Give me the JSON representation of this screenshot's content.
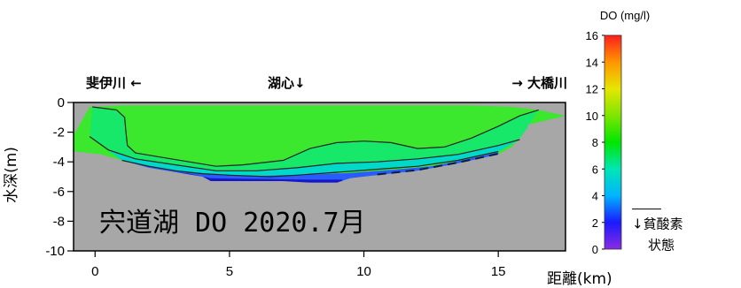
{
  "chart_data": {
    "type": "heatmap",
    "title": "宍道湖 DO 2020.7月",
    "xlabel": "距離(km)",
    "ylabel": "水深(m)",
    "xlim": [
      -0.8,
      17.5
    ],
    "ylim": [
      -10,
      0
    ],
    "x_ticks": [
      0,
      5,
      10,
      15
    ],
    "y_ticks": [
      0,
      -2,
      -4,
      -6,
      -8,
      -10
    ],
    "y_tick_labels": [
      "0",
      "-2",
      "-4",
      "-6",
      "-8",
      "-10"
    ],
    "locations": {
      "left": "斐伊川 ←",
      "center": "湖心↓",
      "right": "→ 大橋川"
    },
    "colorbar": {
      "title": "DO (mg/l)",
      "ticks": [
        0,
        2,
        4,
        6,
        8,
        10,
        12,
        14,
        16
      ],
      "range": [
        0,
        16
      ],
      "annotation_line1": "↓貧酸素",
      "annotation_line2": "状態",
      "annotation_threshold": 3,
      "colors": [
        {
          "v": 0,
          "c": "#8a2be2"
        },
        {
          "v": 2,
          "c": "#1a1aff"
        },
        {
          "v": 4,
          "c": "#00b4ff"
        },
        {
          "v": 6,
          "c": "#00e6b4"
        },
        {
          "v": 8,
          "c": "#00e600"
        },
        {
          "v": 10,
          "c": "#7ee600"
        },
        {
          "v": 12,
          "c": "#e6e600"
        },
        {
          "v": 14,
          "c": "#ff9600"
        },
        {
          "v": 16,
          "c": "#ff1e1e"
        }
      ]
    },
    "water_column_color": "#3be82d",
    "bottom_color": "#a7a7a7",
    "lakebed": [
      [
        -0.8,
        -3.3
      ],
      [
        0.2,
        -3.5
      ],
      [
        1.0,
        -3.9
      ],
      [
        2.0,
        -4.4
      ],
      [
        3.0,
        -4.7
      ],
      [
        4.0,
        -5.0
      ],
      [
        4.3,
        -5.3
      ],
      [
        6.0,
        -5.3
      ],
      [
        7.0,
        -5.3
      ],
      [
        8.0,
        -5.4
      ],
      [
        9.0,
        -5.4
      ],
      [
        9.5,
        -5.1
      ],
      [
        10.5,
        -4.9
      ],
      [
        12.0,
        -4.6
      ],
      [
        13.5,
        -4.1
      ],
      [
        15.0,
        -3.5
      ],
      [
        15.5,
        -3.0
      ],
      [
        15.8,
        -2.4
      ],
      [
        16.1,
        -1.7
      ],
      [
        16.1,
        -1.5
      ],
      [
        17.5,
        -1.5
      ]
    ],
    "surface": [
      [
        -0.8,
        -2.2
      ],
      [
        -0.2,
        -0.3
      ],
      [
        1.0,
        -0.2
      ],
      [
        5.0,
        -0.2
      ],
      [
        10.0,
        -0.2
      ],
      [
        14.0,
        -0.2
      ],
      [
        15.5,
        -0.3
      ],
      [
        16.5,
        -0.5
      ],
      [
        17.5,
        -0.9
      ]
    ],
    "isolines": [
      {
        "level": 8,
        "points": [
          [
            -0.1,
            -0.3
          ],
          [
            0.8,
            -0.5
          ],
          [
            1.1,
            -1.0
          ],
          [
            1.15,
            -2.0
          ],
          [
            1.2,
            -2.9
          ],
          [
            1.5,
            -3.4
          ],
          [
            2.5,
            -3.7
          ],
          [
            3.5,
            -4.0
          ],
          [
            4.5,
            -4.3
          ],
          [
            5.5,
            -4.2
          ],
          [
            7.0,
            -3.9
          ],
          [
            8.0,
            -3.1
          ],
          [
            9.0,
            -2.7
          ],
          [
            10.0,
            -2.6
          ],
          [
            11.0,
            -2.7
          ],
          [
            12.0,
            -3.1
          ],
          [
            13.0,
            -3.0
          ],
          [
            14.0,
            -2.4
          ],
          [
            15.0,
            -1.6
          ],
          [
            15.8,
            -0.9
          ],
          [
            16.5,
            -0.5
          ]
        ]
      },
      {
        "level": 6,
        "points": [
          [
            -0.2,
            -2.3
          ],
          [
            0.5,
            -3.2
          ],
          [
            1.5,
            -3.8
          ],
          [
            3.0,
            -4.2
          ],
          [
            4.5,
            -4.6
          ],
          [
            6.0,
            -4.6
          ],
          [
            7.5,
            -4.4
          ],
          [
            9.0,
            -4.1
          ],
          [
            10.5,
            -4.0
          ],
          [
            12.0,
            -3.8
          ],
          [
            13.5,
            -3.5
          ],
          [
            15.0,
            -2.9
          ],
          [
            15.8,
            -2.5
          ]
        ]
      },
      {
        "level": 4,
        "points": [
          [
            1.0,
            -3.9
          ],
          [
            2.0,
            -4.3
          ],
          [
            3.0,
            -4.6
          ],
          [
            4.0,
            -4.8
          ],
          [
            5.0,
            -4.9
          ],
          [
            6.5,
            -5.0
          ],
          [
            7.5,
            -4.9
          ],
          [
            9.0,
            -4.7
          ],
          [
            10.5,
            -4.5
          ],
          [
            12.0,
            -4.3
          ],
          [
            13.5,
            -3.9
          ],
          [
            15.0,
            -3.3
          ]
        ]
      }
    ],
    "low_do_patches": [
      {
        "color": "#2a5bff",
        "points": [
          [
            1.0,
            -3.9
          ],
          [
            2.0,
            -4.3
          ],
          [
            3.0,
            -4.6
          ],
          [
            4.0,
            -4.8
          ],
          [
            6.0,
            -4.95
          ],
          [
            8.0,
            -4.85
          ],
          [
            9.5,
            -4.75
          ],
          [
            11.0,
            -4.55
          ],
          [
            12.5,
            -4.3
          ],
          [
            13.5,
            -3.95
          ],
          [
            15.0,
            -3.35
          ],
          [
            15.0,
            -3.55
          ],
          [
            13.5,
            -4.15
          ],
          [
            12.0,
            -4.6
          ],
          [
            10.5,
            -4.9
          ],
          [
            9.5,
            -5.1
          ],
          [
            9.0,
            -5.4
          ],
          [
            8.0,
            -5.4
          ],
          [
            6.0,
            -5.3
          ],
          [
            4.3,
            -5.3
          ],
          [
            4.0,
            -5.0
          ],
          [
            3.0,
            -4.7
          ],
          [
            2.0,
            -4.45
          ],
          [
            1.0,
            -4.0
          ]
        ]
      },
      {
        "color": "#1717c8",
        "points": [
          [
            2.0,
            -4.5
          ],
          [
            3.5,
            -4.8
          ],
          [
            4.3,
            -5.1
          ],
          [
            6.0,
            -5.15
          ],
          [
            8.0,
            -5.2
          ],
          [
            9.2,
            -5.2
          ],
          [
            9.2,
            -5.4
          ],
          [
            8.0,
            -5.4
          ],
          [
            6.0,
            -5.3
          ],
          [
            4.3,
            -5.3
          ],
          [
            4.0,
            -5.0
          ],
          [
            3.0,
            -4.7
          ],
          [
            2.0,
            -4.6
          ]
        ]
      }
    ]
  }
}
